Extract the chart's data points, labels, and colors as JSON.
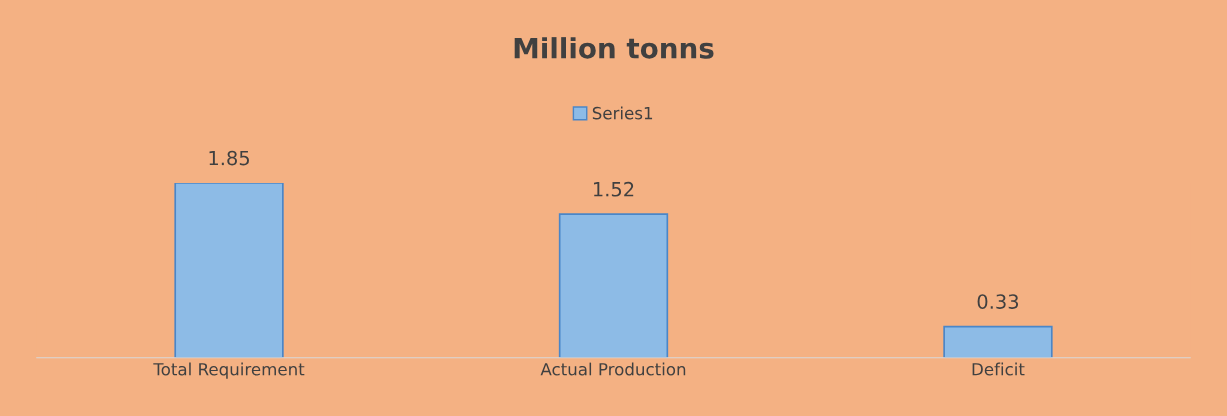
{
  "chart_data": {
    "type": "bar",
    "title": "Million tonns",
    "categories": [
      "Total Requirement",
      "Actual Production",
      "Deficit"
    ],
    "series": [
      {
        "name": "Series1",
        "color": "#8dbbe6",
        "values": [
          1.85,
          1.52,
          0.33
        ]
      }
    ],
    "data_labels": true,
    "legend": "top",
    "grid": false,
    "tick_labels": "x"
  }
}
